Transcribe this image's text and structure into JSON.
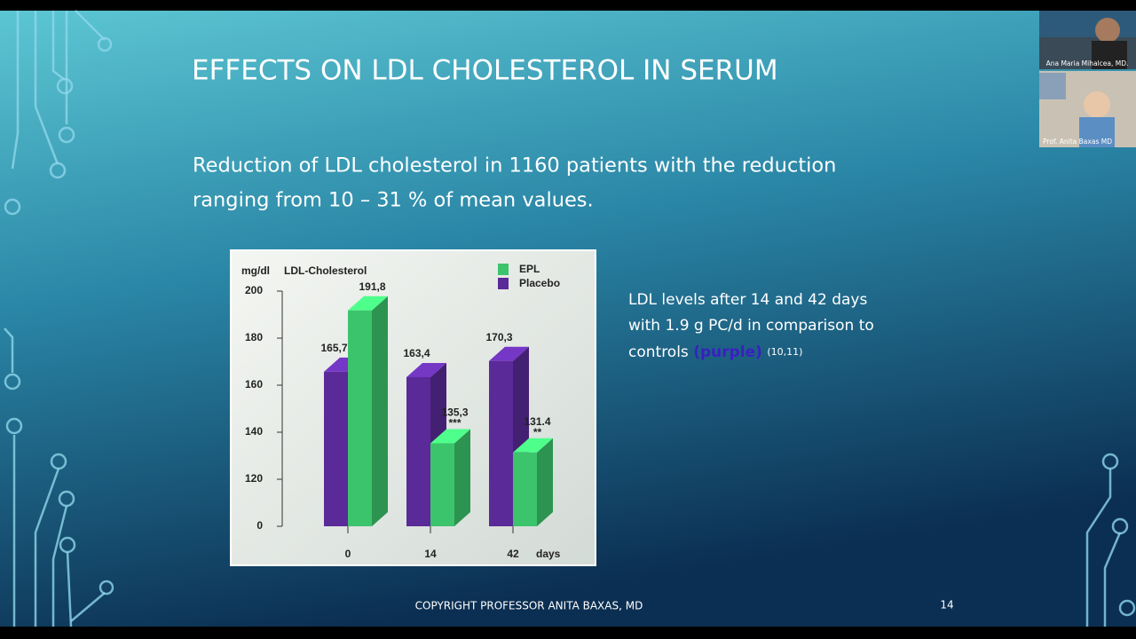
{
  "slide": {
    "title": "EFFECTS ON LDL CHOLESTEROL IN SERUM",
    "subtitle_lines": [
      "Reduction of LDL cholesterol in 1160 patients with the reduction",
      "ranging from 10 – 31 % of mean values."
    ],
    "note_lines": [
      "LDL levels after 14 and 42 days",
      "with 1.9 g PC/d in comparison to"
    ],
    "note_last": {
      "text": "controls",
      "highlight": "(purple)",
      "reference": "(10,11)"
    },
    "footer": "COPYRIGHT PROFESSOR ANITA BAXAS, MD",
    "page_number": "14"
  },
  "participants": [
    "Ana Maria Mihalcea, MD.",
    "Prof. Anita Baxas MD"
  ],
  "chart_data": {
    "type": "bar3d",
    "y_unit": "mg/dl",
    "y_label": "LDL-Cholesterol",
    "x_label": "days",
    "categories": [
      "0",
      "14",
      "42"
    ],
    "series": [
      {
        "name": "Placebo",
        "color": "#5a2a98",
        "values": [
          165.7,
          163.4,
          170.3
        ],
        "value_labels": [
          "165,7",
          "163,4",
          "170,3"
        ]
      },
      {
        "name": "EPL",
        "color": "#3cc46c",
        "values": [
          191.8,
          135.3,
          131.4
        ],
        "value_labels": [
          "191,8",
          "135,3",
          "131.4"
        ],
        "markers": [
          null,
          "***",
          "**"
        ]
      }
    ],
    "ylim": [
      0,
      200
    ],
    "axis_break": [
      0,
      100
    ],
    "yticks": [
      0,
      120,
      140,
      160,
      180,
      200
    ]
  }
}
